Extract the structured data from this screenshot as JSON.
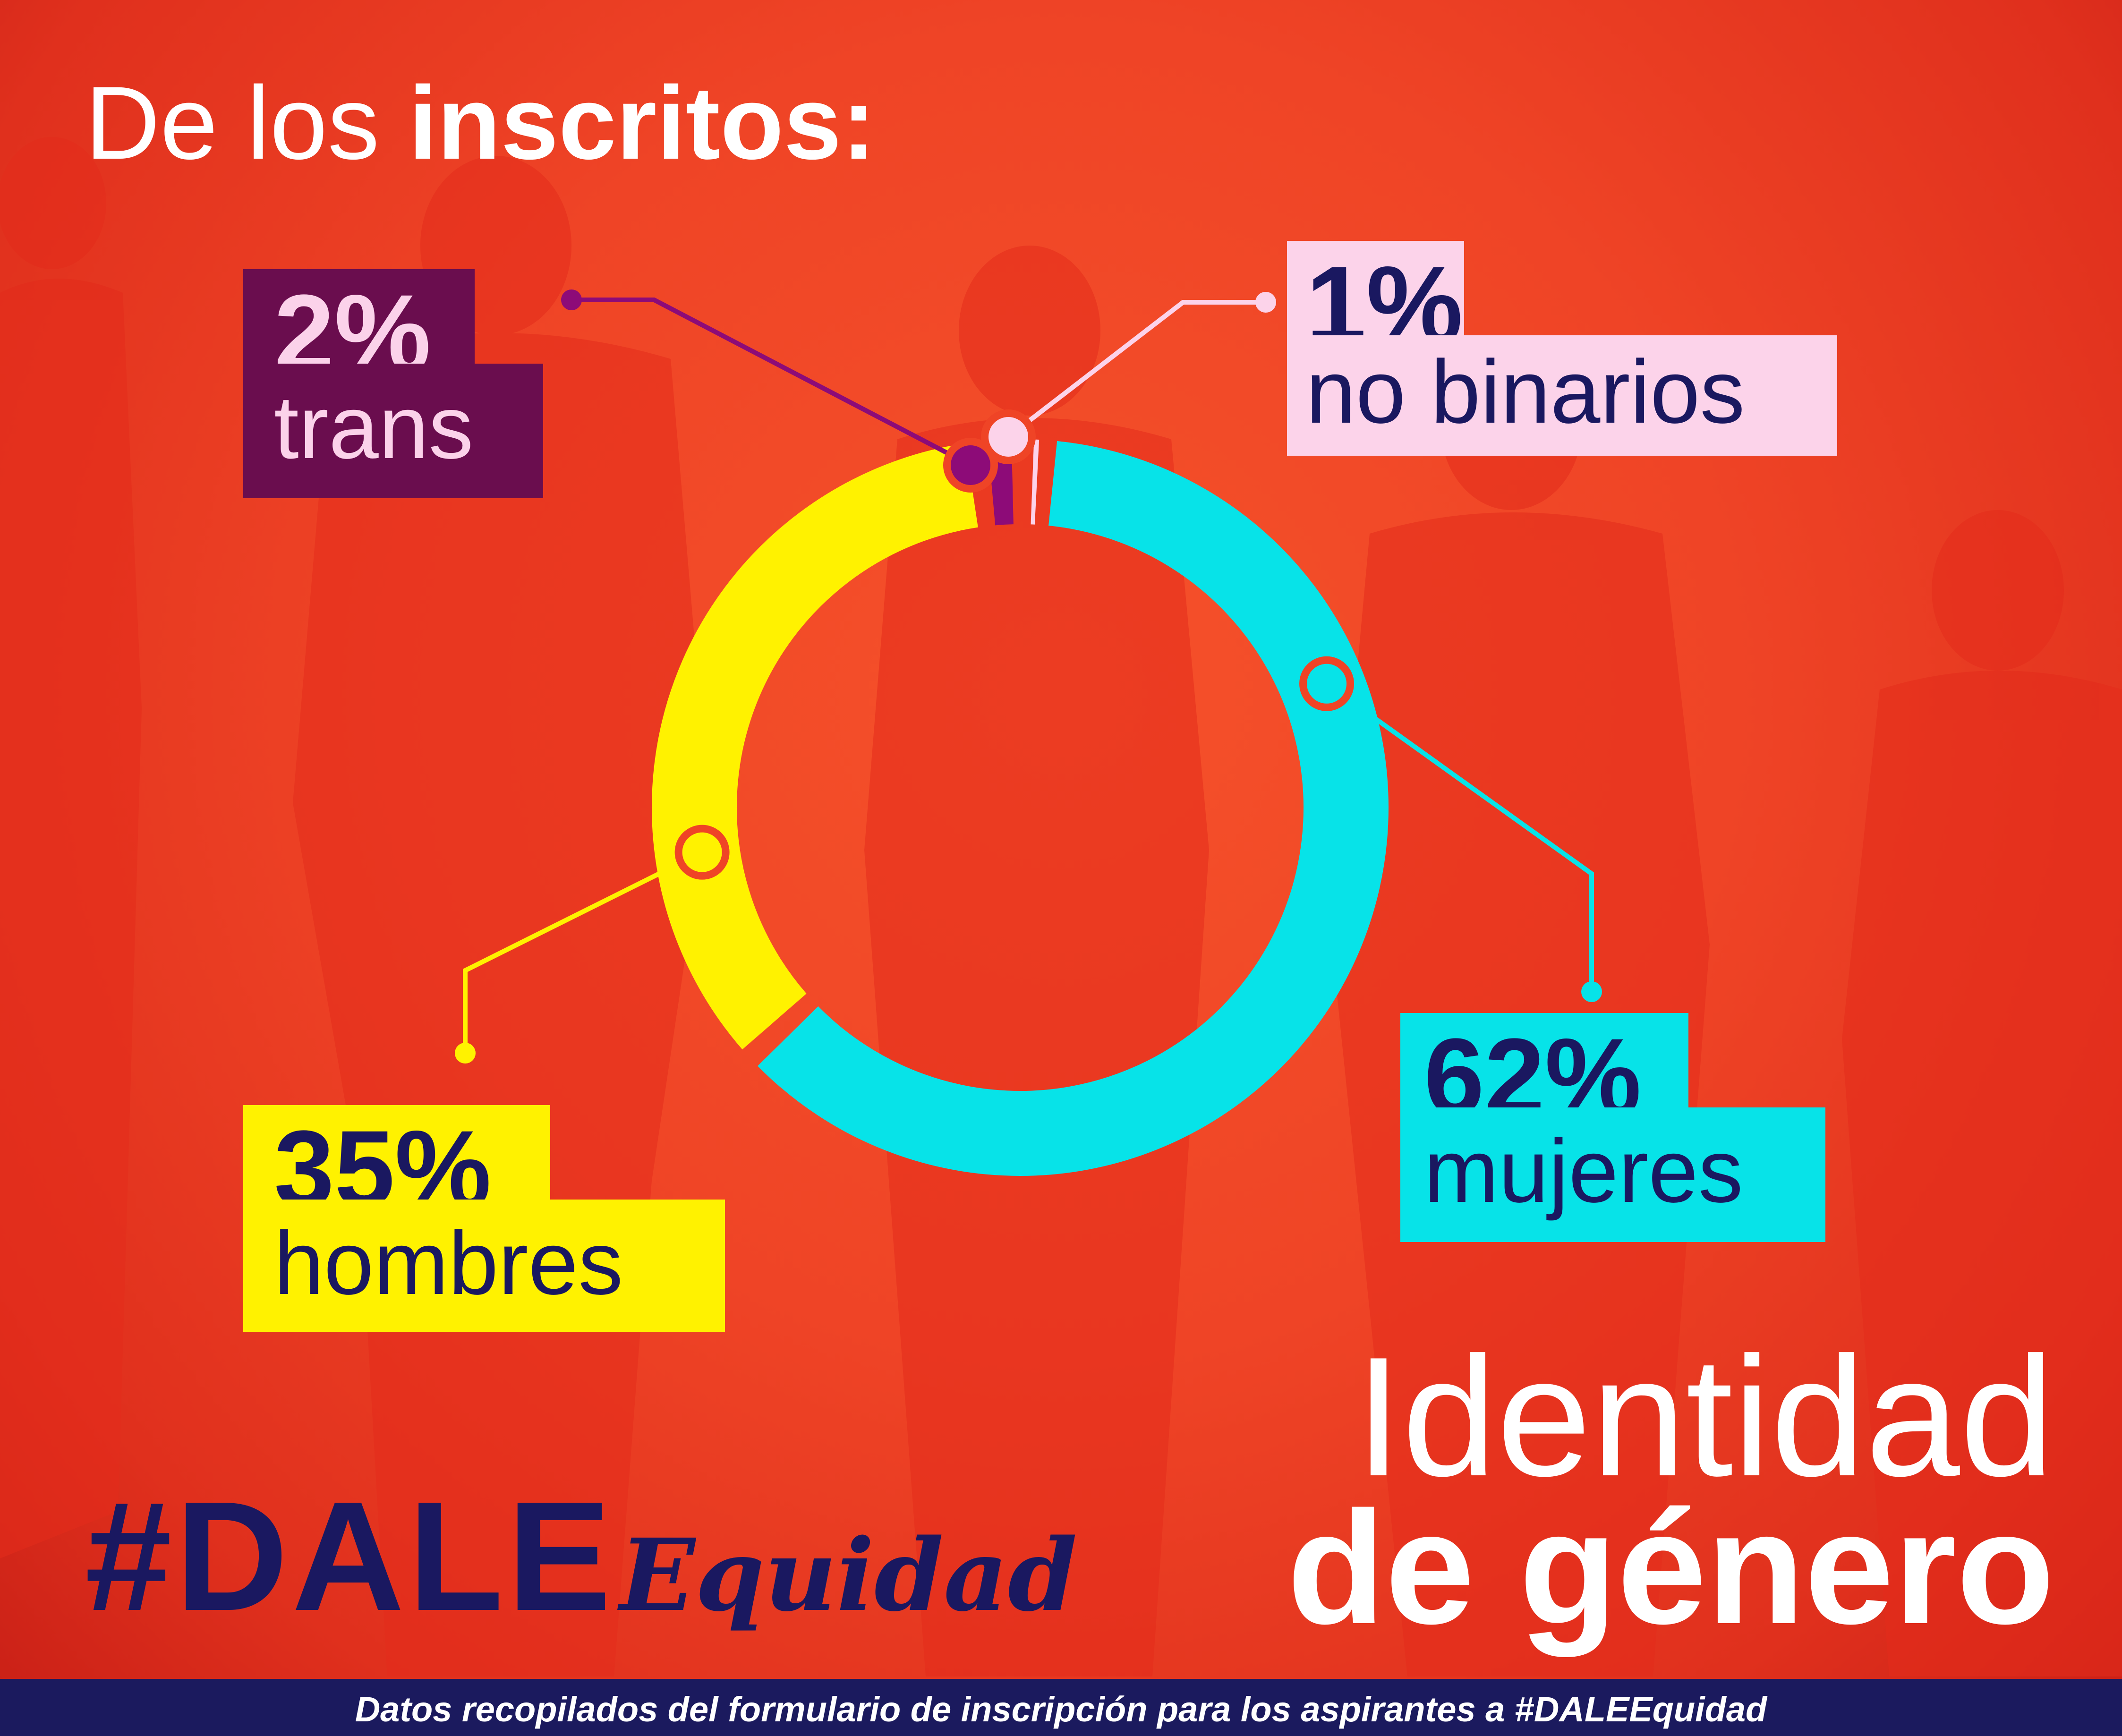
{
  "headline": {
    "prefix": "De los",
    "emphasis": "inscritos:"
  },
  "chart_data": {
    "type": "pie",
    "variant": "donut",
    "categories": [
      "mujeres",
      "hombres",
      "trans",
      "no binarios"
    ],
    "values": [
      62,
      35,
      2,
      1
    ],
    "labels": [
      "62%",
      "35%",
      "2%",
      "1%"
    ],
    "colors": [
      "#07e3e8",
      "#fff200",
      "#8d0b78",
      "#fcd3ea"
    ],
    "title": "Identidad de género"
  },
  "labels": {
    "trans": {
      "pct": "2%",
      "cat": "trans"
    },
    "no_binarios": {
      "pct": "1%",
      "cat": "no binarios"
    },
    "hombres": {
      "pct": "35%",
      "cat": "hombres"
    },
    "mujeres": {
      "pct": "62%",
      "cat": "mujeres"
    }
  },
  "title": {
    "line1": "Identidad",
    "line2": "de género"
  },
  "brand": {
    "hashtag": "#DALE",
    "script": "Equidad"
  },
  "footer": {
    "text": "Datos recopilados del formulario de inscripción para los aspirantes a #DALEEquidad"
  }
}
